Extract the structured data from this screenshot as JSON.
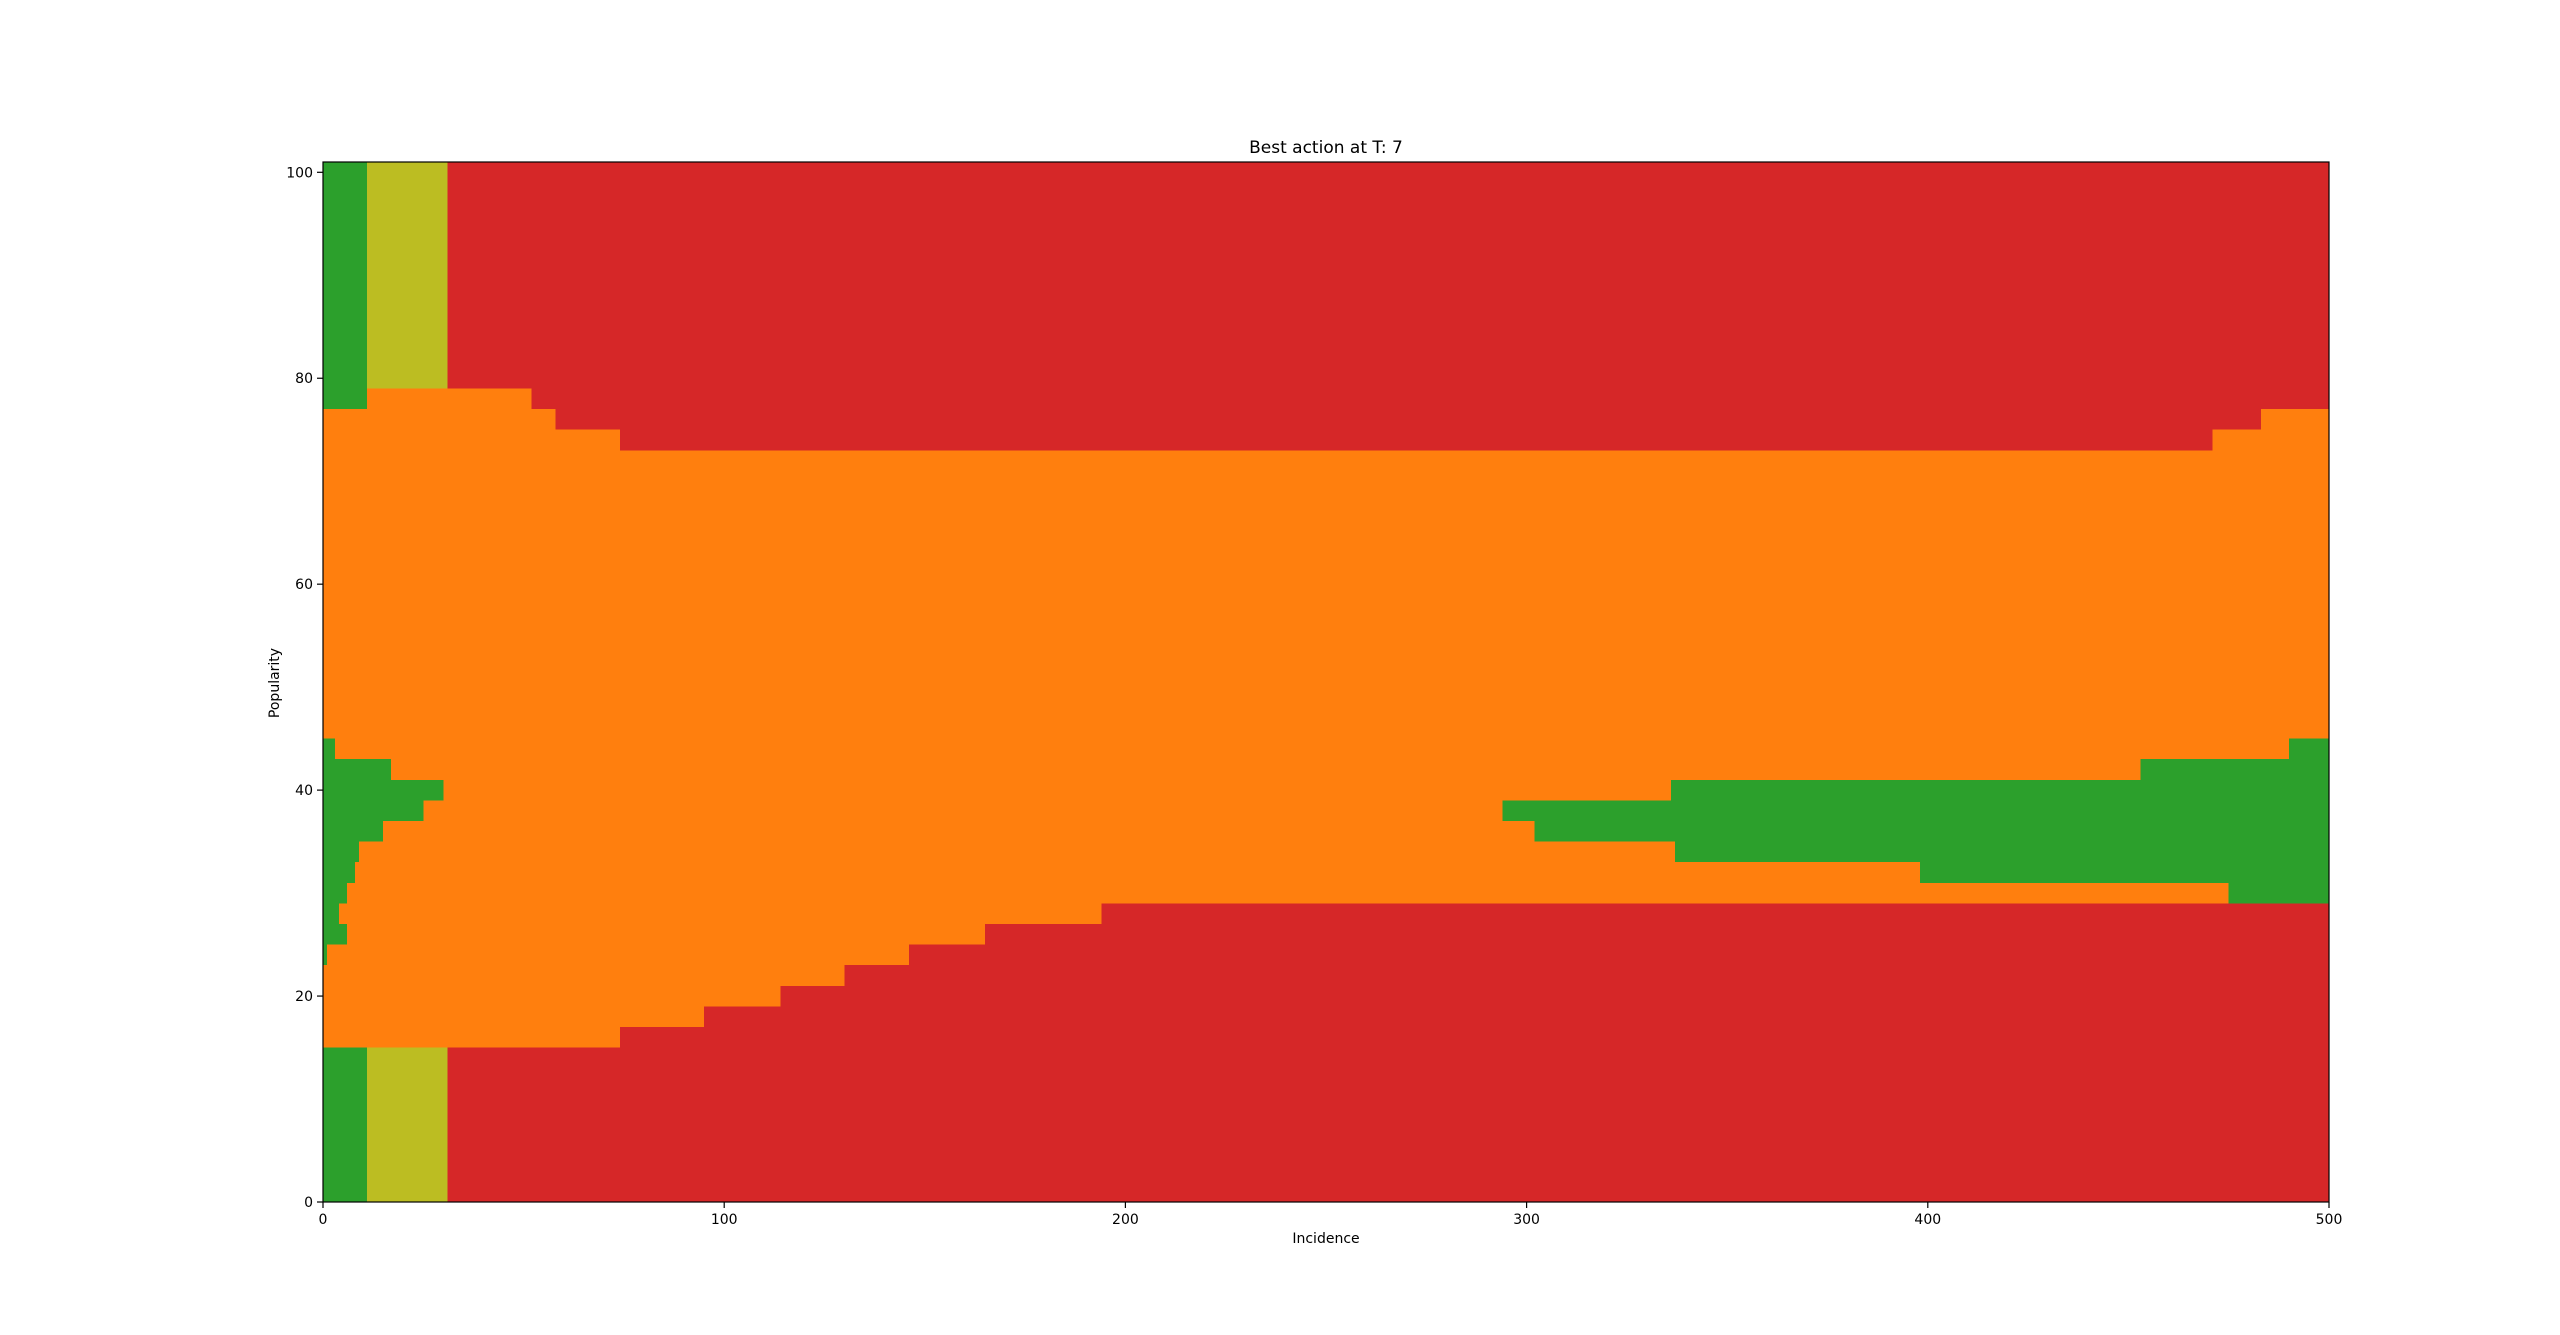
{
  "chart_data": {
    "type": "heatmap",
    "title": "Best action at T: 7",
    "xlabel": "Incidence",
    "ylabel": "Popularity",
    "xlim": [
      0,
      500
    ],
    "ylim": [
      0,
      101
    ],
    "xticks": [
      "0",
      "100",
      "200",
      "300",
      "400",
      "500"
    ],
    "yticks": [
      "0",
      "20",
      "40",
      "60",
      "80",
      "100"
    ],
    "grid": false,
    "colors": {
      "red": "#d62728",
      "orange": "#ff7f0e",
      "green": "#2ca02c",
      "olive": "#bcbd22"
    },
    "background_category": "red",
    "regions": [
      {
        "category": "orange",
        "x": [
          0,
          500
        ],
        "y": [
          15,
          77
        ]
      },
      {
        "category": "red",
        "x": [
          11,
          500
        ],
        "y": [
          73,
          101
        ]
      },
      {
        "category": "orange",
        "x": [
          11,
          52
        ],
        "y": [
          73,
          79
        ]
      },
      {
        "category": "orange",
        "x": [
          52,
          58
        ],
        "y": [
          73,
          77
        ]
      },
      {
        "category": "orange",
        "x": [
          58,
          74
        ],
        "y": [
          73,
          75
        ]
      },
      {
        "category": "orange",
        "x": [
          471,
          483
        ],
        "y": [
          73,
          75
        ]
      },
      {
        "category": "orange",
        "x": [
          483,
          500
        ],
        "y": [
          73,
          77
        ]
      },
      {
        "category": "green",
        "x": [
          0,
          11
        ],
        "y": [
          77,
          101
        ]
      },
      {
        "category": "olive",
        "x": [
          11,
          31
        ],
        "y": [
          79,
          101
        ]
      },
      {
        "category": "red",
        "x": [
          11,
          500
        ],
        "y": [
          0,
          15
        ]
      },
      {
        "category": "red",
        "x": [
          74,
          95
        ],
        "y": [
          15,
          17
        ]
      },
      {
        "category": "red",
        "x": [
          95,
          114
        ],
        "y": [
          15,
          19
        ]
      },
      {
        "category": "red",
        "x": [
          114,
          130
        ],
        "y": [
          15,
          21
        ]
      },
      {
        "category": "red",
        "x": [
          130,
          146
        ],
        "y": [
          15,
          23
        ]
      },
      {
        "category": "red",
        "x": [
          146,
          165
        ],
        "y": [
          15,
          25
        ]
      },
      {
        "category": "red",
        "x": [
          165,
          194
        ],
        "y": [
          15,
          27
        ]
      },
      {
        "category": "red",
        "x": [
          194,
          500
        ],
        "y": [
          15,
          29
        ]
      },
      {
        "category": "green",
        "x": [
          0,
          11
        ],
        "y": [
          0,
          15
        ]
      },
      {
        "category": "olive",
        "x": [
          11,
          31
        ],
        "y": [
          0,
          15
        ]
      },
      {
        "category": "green",
        "x": [
          0,
          1
        ],
        "y": [
          23,
          25
        ]
      },
      {
        "category": "green",
        "x": [
          0,
          6
        ],
        "y": [
          25,
          27
        ]
      },
      {
        "category": "green",
        "x": [
          0,
          4
        ],
        "y": [
          27,
          29
        ]
      },
      {
        "category": "green",
        "x": [
          0,
          6
        ],
        "y": [
          29,
          31
        ]
      },
      {
        "category": "green",
        "x": [
          0,
          8
        ],
        "y": [
          31,
          33
        ]
      },
      {
        "category": "green",
        "x": [
          0,
          9
        ],
        "y": [
          33,
          35
        ]
      },
      {
        "category": "green",
        "x": [
          0,
          15
        ],
        "y": [
          35,
          37
        ]
      },
      {
        "category": "green",
        "x": [
          0,
          25
        ],
        "y": [
          37,
          39
        ]
      },
      {
        "category": "green",
        "x": [
          0,
          30
        ],
        "y": [
          39,
          41
        ]
      },
      {
        "category": "green",
        "x": [
          0,
          17
        ],
        "y": [
          41,
          43
        ]
      },
      {
        "category": "green",
        "x": [
          0,
          3
        ],
        "y": [
          43,
          45
        ]
      },
      {
        "category": "green",
        "x": [
          294,
          302
        ],
        "y": [
          37,
          39
        ]
      },
      {
        "category": "green",
        "x": [
          302,
          336
        ],
        "y": [
          35,
          39
        ]
      },
      {
        "category": "green",
        "x": [
          336,
          337
        ],
        "y": [
          35,
          41
        ]
      },
      {
        "category": "green",
        "x": [
          337,
          398
        ],
        "y": [
          33,
          41
        ]
      },
      {
        "category": "green",
        "x": [
          398,
          453
        ],
        "y": [
          31,
          41
        ]
      },
      {
        "category": "green",
        "x": [
          453,
          475
        ],
        "y": [
          31,
          43
        ]
      },
      {
        "category": "green",
        "x": [
          475,
          490
        ],
        "y": [
          29,
          43
        ]
      },
      {
        "category": "green",
        "x": [
          490,
          500
        ],
        "y": [
          29,
          45
        ]
      }
    ]
  }
}
